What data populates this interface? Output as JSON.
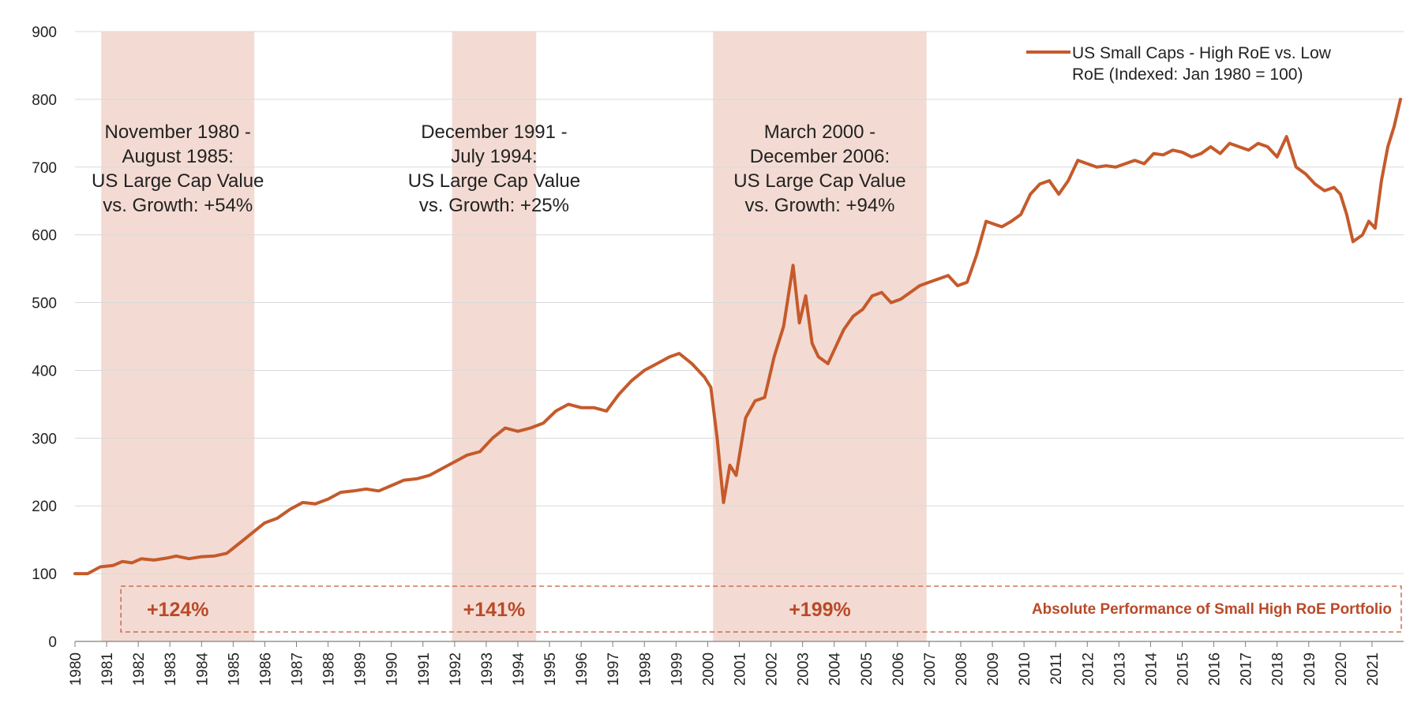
{
  "chart_data": {
    "type": "line",
    "title": "",
    "xlabel": "",
    "ylabel": "",
    "ylim": [
      0,
      900
    ],
    "yticks": [
      0,
      100,
      200,
      300,
      400,
      500,
      600,
      700,
      800,
      900
    ],
    "xlim": [
      1980,
      2022
    ],
    "xticks": [
      "1980",
      "1981",
      "1982",
      "1983",
      "1984",
      "1985",
      "1986",
      "1987",
      "1988",
      "1989",
      "1990",
      "1991",
      "1992",
      "1993",
      "1994",
      "1995",
      "1996",
      "1997",
      "1998",
      "1999",
      "2000",
      "2001",
      "2002",
      "2003",
      "2004",
      "2005",
      "2006",
      "2007",
      "2008",
      "2009",
      "2010",
      "2011",
      "2012",
      "2013",
      "2014",
      "2015",
      "2016",
      "2017",
      "2018",
      "2019",
      "2020",
      "2021"
    ],
    "grid": "horizontal",
    "legend_position": "top-right",
    "colors": {
      "line": "#c55a2b",
      "shade": "#f3dbd3",
      "perf_text": "#b94a28",
      "perf_box": "#c05a38"
    },
    "series": [
      {
        "name": "US Small Caps - High RoE vs. Low RoE (Indexed: Jan 1980 = 100)",
        "name_lines": [
          "US Small Caps - High RoE vs. Low",
          "RoE (Indexed: Jan 1980 = 100)"
        ],
        "x": [
          1980.0,
          1980.4,
          1980.8,
          1981.2,
          1981.5,
          1981.8,
          1982.1,
          1982.5,
          1982.9,
          1983.2,
          1983.6,
          1984.0,
          1984.4,
          1984.8,
          1985.2,
          1985.6,
          1986.0,
          1986.4,
          1986.8,
          1987.2,
          1987.6,
          1988.0,
          1988.4,
          1988.8,
          1989.2,
          1989.6,
          1990.0,
          1990.4,
          1990.8,
          1991.2,
          1991.6,
          1992.0,
          1992.4,
          1992.8,
          1993.2,
          1993.6,
          1994.0,
          1994.4,
          1994.8,
          1995.2,
          1995.6,
          1996.0,
          1996.4,
          1996.8,
          1997.2,
          1997.6,
          1998.0,
          1998.4,
          1998.8,
          1999.1,
          1999.5,
          1999.9,
          2000.1,
          2000.3,
          2000.5,
          2000.7,
          2000.9,
          2001.2,
          2001.5,
          2001.8,
          2002.1,
          2002.4,
          2002.7,
          2002.9,
          2003.1,
          2003.3,
          2003.5,
          2003.8,
          2004.0,
          2004.3,
          2004.6,
          2004.9,
          2005.2,
          2005.5,
          2005.8,
          2006.1,
          2006.4,
          2006.7,
          2007.0,
          2007.3,
          2007.6,
          2007.9,
          2008.2,
          2008.5,
          2008.8,
          2009.1,
          2009.3,
          2009.6,
          2009.9,
          2010.2,
          2010.5,
          2010.8,
          2011.1,
          2011.4,
          2011.7,
          2012.0,
          2012.3,
          2012.6,
          2012.9,
          2013.2,
          2013.5,
          2013.8,
          2014.1,
          2014.4,
          2014.7,
          2015.0,
          2015.3,
          2015.6,
          2015.9,
          2016.2,
          2016.5,
          2016.8,
          2017.1,
          2017.4,
          2017.7,
          2018.0,
          2018.3,
          2018.6,
          2018.9,
          2019.2,
          2019.5,
          2019.8,
          2020.0,
          2020.2,
          2020.4,
          2020.7,
          2020.9,
          2021.1,
          2021.3,
          2021.5,
          2021.7,
          2021.9
        ],
        "values": [
          100,
          100,
          110,
          112,
          118,
          116,
          122,
          120,
          123,
          126,
          122,
          125,
          126,
          130,
          145,
          160,
          175,
          182,
          195,
          205,
          203,
          210,
          220,
          222,
          225,
          222,
          230,
          238,
          240,
          245,
          255,
          265,
          275,
          280,
          300,
          315,
          310,
          315,
          322,
          340,
          350,
          345,
          345,
          340,
          365,
          385,
          400,
          410,
          420,
          425,
          410,
          390,
          375,
          300,
          205,
          260,
          245,
          330,
          355,
          360,
          420,
          465,
          555,
          470,
          510,
          440,
          420,
          410,
          430,
          460,
          480,
          490,
          510,
          515,
          500,
          505,
          515,
          525,
          530,
          535,
          540,
          525,
          530,
          570,
          620,
          615,
          612,
          620,
          630,
          660,
          675,
          680,
          660,
          680,
          710,
          705,
          700,
          702,
          700,
          705,
          710,
          705,
          720,
          718,
          725,
          722,
          715,
          720,
          730,
          720,
          735,
          730,
          725,
          735,
          730,
          715,
          745,
          700,
          690,
          675,
          665,
          670,
          660,
          630,
          590,
          600,
          620,
          610,
          680,
          730,
          760,
          800
        ],
        "line_width": 4
      }
    ],
    "shaded_periods": [
      {
        "start": 1980.83,
        "end": 1985.67,
        "label_lines": [
          "November 1980 -",
          "August 1985:",
          "US Large Cap Value",
          "vs. Growth: +54%"
        ],
        "performance": "+124%"
      },
      {
        "start": 1991.92,
        "end": 1994.58,
        "label_lines": [
          "December 1991 -",
          "July 1994:",
          "US Large Cap Value",
          "vs. Growth: +25%"
        ],
        "performance": "+141%"
      },
      {
        "start": 2000.17,
        "end": 2006.92,
        "label_lines": [
          "March 2000 -",
          "December 2006:",
          "US Large Cap Value",
          "vs. Growth: +94%"
        ],
        "performance": "+199%"
      }
    ],
    "performance_box_label": "Absolute Performance of Small High RoE Portfolio"
  }
}
